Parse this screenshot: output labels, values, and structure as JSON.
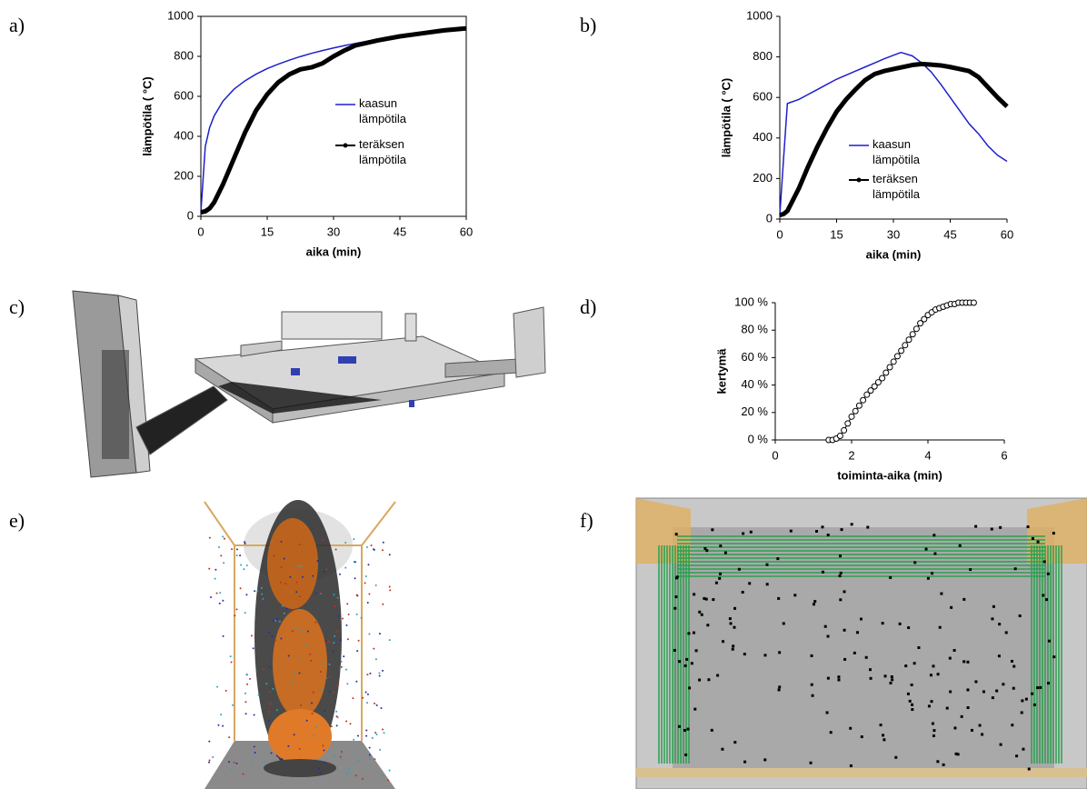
{
  "panel_labels": [
    "a)",
    "b)",
    "c)",
    "d)",
    "e)",
    "f)"
  ],
  "chart_data": [
    {
      "type": "line",
      "xlabel": "aika (min)",
      "ylabel": "lämpötila ( °C)",
      "xlim": [
        0,
        60
      ],
      "xticks": [
        0,
        15,
        30,
        45,
        60
      ],
      "ylim": [
        0,
        1000
      ],
      "yticks": [
        0,
        200,
        400,
        600,
        800,
        1000
      ],
      "x": [
        0,
        1,
        2,
        3,
        5,
        7.5,
        10,
        12.5,
        15,
        17.5,
        20,
        22.5,
        25,
        27.5,
        30,
        32.5,
        35,
        40,
        45,
        50,
        55,
        60
      ],
      "series": [
        {
          "name": "kaasun lämpötila",
          "color": "#1f1fcc",
          "values": [
            20,
            349,
            445,
            502,
            576,
            636,
            678,
            711,
            739,
            761,
            781,
            799,
            815,
            829,
            842,
            854,
            865,
            885,
            902,
            918,
            932,
            945
          ]
        },
        {
          "name": "teräksen lämpötila",
          "color": "#000000",
          "values": [
            20,
            25,
            40,
            70,
            160,
            290,
            420,
            530,
            610,
            670,
            710,
            735,
            745,
            765,
            800,
            830,
            855,
            880,
            900,
            915,
            930,
            940
          ]
        }
      ]
    },
    {
      "type": "line",
      "xlabel": "aika (min)",
      "ylabel": "lämpötila ( °C)",
      "xlim": [
        0,
        60
      ],
      "xticks": [
        0,
        15,
        30,
        45,
        60
      ],
      "ylim": [
        0,
        1000
      ],
      "yticks": [
        0,
        200,
        400,
        600,
        800,
        1000
      ],
      "x": [
        0,
        1,
        2,
        5,
        7.5,
        10,
        12.5,
        15,
        17.5,
        20,
        22.5,
        25,
        27.5,
        30,
        32,
        35,
        37.5,
        40,
        42.5,
        45,
        47.5,
        50,
        52.5,
        55,
        57.5,
        60
      ],
      "series": [
        {
          "name": "kaasun lämpötila",
          "color": "#1f1fcc",
          "values": [
            20,
            300,
            570,
            590,
            615,
            640,
            665,
            690,
            710,
            730,
            750,
            770,
            790,
            808,
            822,
            805,
            770,
            725,
            665,
            600,
            535,
            470,
            420,
            360,
            315,
            285
          ]
        },
        {
          "name": "teräksen lämpötila",
          "color": "#000000",
          "values": [
            20,
            25,
            40,
            150,
            260,
            360,
            450,
            530,
            590,
            640,
            685,
            715,
            730,
            740,
            748,
            760,
            765,
            762,
            758,
            750,
            740,
            730,
            700,
            650,
            600,
            555
          ]
        }
      ]
    },
    {
      "type": "line",
      "xlabel": "toiminta-aika (min)",
      "ylabel": "kertymä",
      "markers": true,
      "xlim": [
        0,
        6
      ],
      "xticks": [
        0,
        2,
        4,
        6
      ],
      "ylim": [
        0,
        100
      ],
      "yticks": [
        {
          "value": 0,
          "label": "0 %"
        },
        {
          "value": 20,
          "label": "20 %"
        },
        {
          "value": 40,
          "label": "40 %"
        },
        {
          "value": 60,
          "label": "60 %"
        },
        {
          "value": 80,
          "label": "80 %"
        },
        {
          "value": 100,
          "label": "100 %"
        }
      ],
      "x": [
        1.4,
        1.5,
        1.6,
        1.7,
        1.8,
        1.9,
        2.0,
        2.1,
        2.2,
        2.3,
        2.4,
        2.5,
        2.6,
        2.7,
        2.8,
        2.9,
        3.0,
        3.1,
        3.2,
        3.3,
        3.4,
        3.5,
        3.6,
        3.7,
        3.8,
        3.9,
        4.0,
        4.1,
        4.2,
        4.3,
        4.4,
        4.5,
        4.6,
        4.7,
        4.8,
        4.9,
        5.0,
        5.1,
        5.2
      ],
      "series": [
        {
          "color": "#000000",
          "values": [
            0,
            0,
            1,
            3,
            7,
            12,
            17,
            21,
            25,
            29,
            33,
            36,
            39,
            42,
            45,
            49,
            53,
            57,
            61,
            65,
            69,
            73,
            77,
            81,
            85,
            88,
            91,
            93,
            95,
            96,
            97,
            98,
            99,
            99,
            100,
            100,
            100,
            100,
            100
          ]
        }
      ]
    }
  ]
}
